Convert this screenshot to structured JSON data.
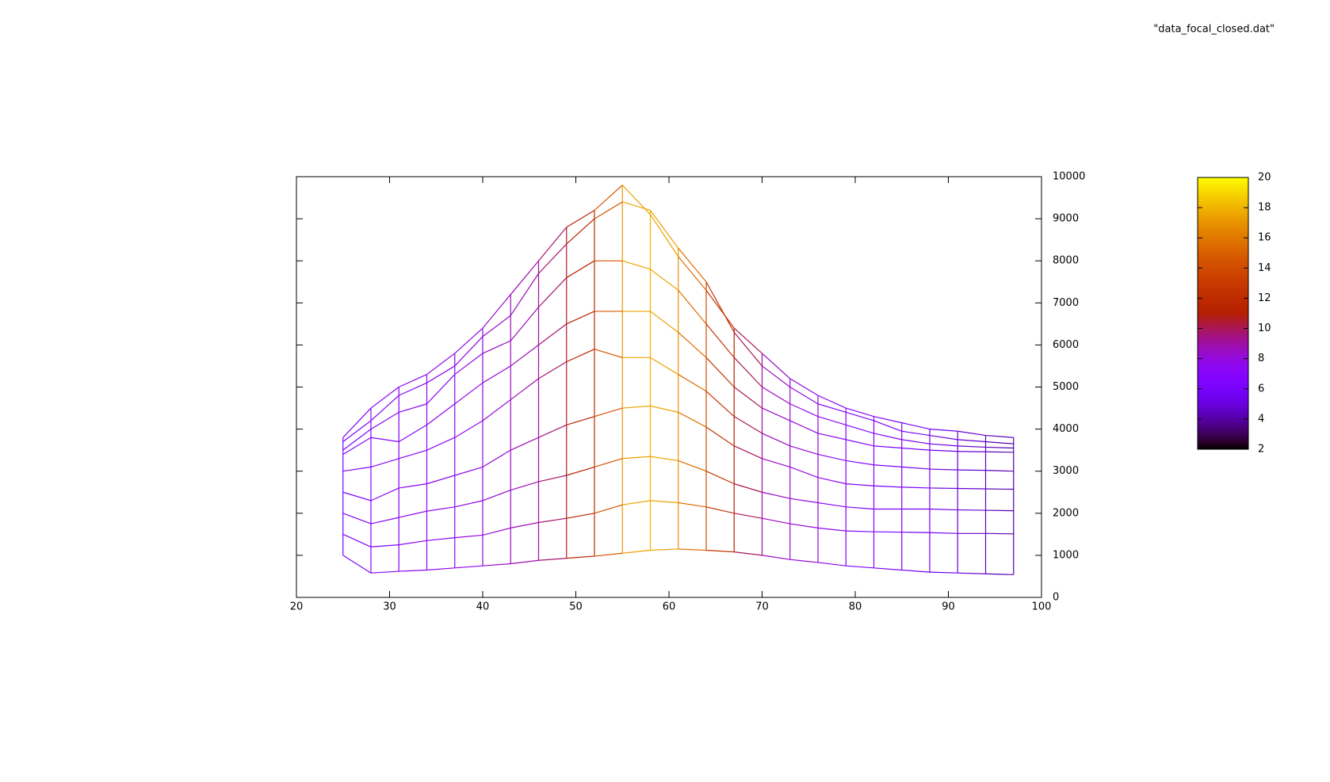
{
  "chart_data": {
    "type": "wireframe",
    "legend": "\"data_focal_closed.dat\"",
    "x": [
      25,
      28,
      31,
      34,
      37,
      40,
      43,
      46,
      49,
      52,
      55,
      58,
      61,
      64,
      67,
      70,
      73,
      76,
      79,
      82,
      85,
      88,
      91,
      94,
      97
    ],
    "rows": [
      [
        1000,
        580,
        620,
        650,
        700,
        750,
        800,
        880,
        930,
        980,
        1050,
        1120,
        1150,
        1120,
        1080,
        1000,
        900,
        830,
        750,
        700,
        650,
        600,
        580,
        560,
        540
      ],
      [
        1500,
        1200,
        1250,
        1350,
        1420,
        1480,
        1650,
        1780,
        1880,
        2000,
        2200,
        2300,
        2250,
        2150,
        2000,
        1880,
        1750,
        1650,
        1580,
        1560,
        1550,
        1540,
        1520,
        1520,
        1510
      ],
      [
        2000,
        1750,
        1900,
        2050,
        2150,
        2300,
        2550,
        2750,
        2900,
        3100,
        3300,
        3350,
        3250,
        3000,
        2700,
        2500,
        2350,
        2250,
        2150,
        2100,
        2100,
        2100,
        2080,
        2070,
        2060
      ],
      [
        2500,
        2300,
        2600,
        2700,
        2900,
        3100,
        3500,
        3800,
        4100,
        4300,
        4500,
        4550,
        4400,
        4050,
        3600,
        3300,
        3100,
        2850,
        2700,
        2650,
        2620,
        2600,
        2590,
        2580,
        2570
      ],
      [
        3000,
        3100,
        3300,
        3500,
        3800,
        4200,
        4700,
        5200,
        5600,
        5900,
        5700,
        5700,
        5300,
        4900,
        4300,
        3900,
        3600,
        3400,
        3250,
        3150,
        3100,
        3050,
        3030,
        3020,
        3000
      ],
      [
        3400,
        3800,
        3700,
        4100,
        4600,
        5100,
        5500,
        6000,
        6500,
        6800,
        6800,
        6800,
        6300,
        5700,
        5000,
        4500,
        4200,
        3900,
        3750,
        3600,
        3550,
        3500,
        3470,
        3460,
        3450
      ],
      [
        3500,
        4000,
        4400,
        4600,
        5300,
        5800,
        6100,
        6900,
        7600,
        8000,
        8000,
        7800,
        7300,
        6500,
        5700,
        5000,
        4600,
        4300,
        4100,
        3900,
        3750,
        3650,
        3600,
        3570,
        3550
      ],
      [
        3700,
        4200,
        4800,
        5100,
        5500,
        6200,
        6700,
        7700,
        8400,
        9000,
        9400,
        9200,
        8300,
        7500,
        6300,
        5500,
        5000,
        4600,
        4400,
        4200,
        3950,
        3850,
        3750,
        3700,
        3650
      ],
      [
        3800,
        4500,
        5000,
        5300,
        5800,
        6400,
        7200,
        8000,
        8800,
        9200,
        9800,
        9100,
        8100,
        7300,
        6400,
        5800,
        5200,
        4800,
        4500,
        4300,
        4150,
        4000,
        3950,
        3850,
        3800
      ]
    ],
    "cb": [
      6,
      7,
      7,
      7.5,
      7.5,
      8,
      8.5,
      9,
      10.5,
      12,
      17,
      18,
      17,
      14,
      11,
      9,
      8,
      8,
      7,
      6.5,
      6,
      5.5,
      5,
      4.5,
      4
    ],
    "xlim": [
      20,
      100
    ],
    "xticks": [
      20,
      30,
      40,
      50,
      60,
      70,
      80,
      90,
      100
    ],
    "ylim": [
      0,
      10000
    ],
    "yticks": [
      0,
      1000,
      2000,
      3000,
      4000,
      5000,
      6000,
      7000,
      8000,
      9000,
      10000
    ],
    "cblim": [
      2,
      20
    ],
    "cbticks": [
      2,
      4,
      6,
      8,
      10,
      12,
      14,
      16,
      18,
      20
    ]
  }
}
